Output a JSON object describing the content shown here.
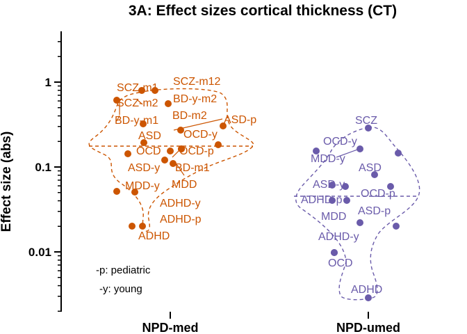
{
  "chart_data": {
    "type": "scatter",
    "title": "3A: Effect sizes cortical thickness (CT)",
    "ylabel": "Effect size (abs)",
    "yscale": "log",
    "ylim": [
      0.0025,
      4
    ],
    "yticks": [
      1,
      0.1,
      0.01
    ],
    "ytick_labels": [
      "1",
      "0.1",
      "0.01"
    ],
    "categories": [
      "NPD-med",
      "NPD-umed"
    ],
    "colors": {
      "NPD-med": "#CC5500",
      "NPD-umed": "#6A5BAA"
    },
    "median_lines": {
      "NPD-med": 0.17,
      "NPD-umed": 0.046
    },
    "series": [
      {
        "name": "NPD-med",
        "points": [
          {
            "label": "SCZ-m1",
            "value": 0.78
          },
          {
            "label": "SCZ-m12",
            "value": 0.78
          },
          {
            "label": "SCZ-m2",
            "value": 0.6
          },
          {
            "label": "BD-y-m2",
            "value": 0.54
          },
          {
            "label": "BD-y-m1",
            "value": 0.33
          },
          {
            "label": "BD-m2",
            "value": 0.33
          },
          {
            "label": "ASD-p",
            "value": 0.3
          },
          {
            "label": "ASD",
            "value": 0.19
          },
          {
            "label": "OCD-y",
            "value": 0.26
          },
          {
            "label": "OCD",
            "value": 0.14
          },
          {
            "label": "OCD-p",
            "value": 0.15
          },
          {
            "label": "ASD-y",
            "value": 0.12
          },
          {
            "label": "BD-m1",
            "value": 0.11
          },
          {
            "label": "MDD-y",
            "value": 0.052
          },
          {
            "label": "MDD",
            "value": 0.052
          },
          {
            "label": "ADHD-y",
            "value": 0.18
          },
          {
            "label": "ADHD-p",
            "value": 0.16
          },
          {
            "label": "ADHD",
            "value": 0.02
          },
          {
            "label": "",
            "value": 0.02
          }
        ]
      },
      {
        "name": "NPD-umed",
        "points": [
          {
            "label": "SCZ",
            "value": 0.28
          },
          {
            "label": "OCD-y",
            "value": 0.16
          },
          {
            "label": "",
            "value": 0.145
          },
          {
            "label": "MDD-y",
            "value": 0.16
          },
          {
            "label": "ASD",
            "value": 0.08
          },
          {
            "label": "ASD-y",
            "value": 0.061
          },
          {
            "label": "",
            "value": 0.06
          },
          {
            "label": "OCD-p",
            "value": 0.08
          },
          {
            "label": "ADHD-p",
            "value": 0.04
          },
          {
            "label": "",
            "value": 0.04
          },
          {
            "label": "MDD",
            "value": 0.023
          },
          {
            "label": "ASD-p",
            "value": 0.02
          },
          {
            "label": "ADHD-y",
            "value": 0.01
          },
          {
            "label": "OCD",
            "value": 0.01
          },
          {
            "label": "ADHD",
            "value": 0.003
          }
        ]
      }
    ],
    "annotations": [
      "-p: pediatric",
      "-y: young"
    ]
  }
}
